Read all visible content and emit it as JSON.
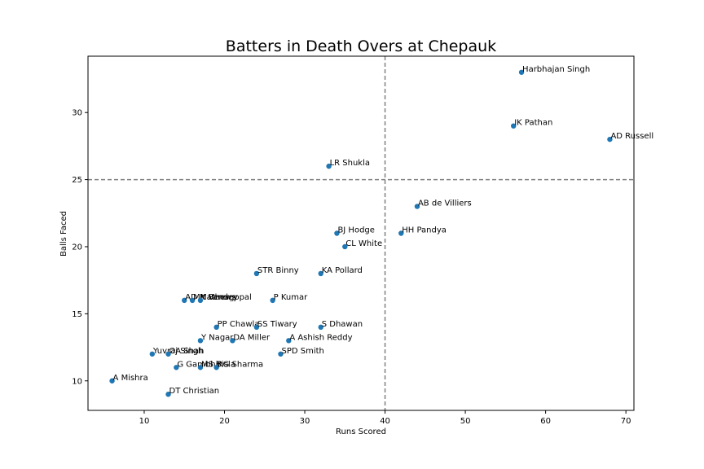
{
  "chart_data": {
    "type": "scatter",
    "title": "Batters in Death Overs at Chepauk",
    "xlabel": "Runs Scored",
    "ylabel": "Balls Faced",
    "xlim": [
      3,
      71
    ],
    "ylim": [
      7.8,
      34.2
    ],
    "xticks": [
      10,
      20,
      30,
      40,
      50,
      60,
      70
    ],
    "yticks": [
      10,
      15,
      20,
      25,
      30
    ],
    "grid": false,
    "marker_color": "#1f77b4",
    "reference_lines": {
      "vertical_x": 40,
      "horizontal_y": 25,
      "color": "#808080",
      "style": "dashed"
    },
    "points": [
      {
        "label": "Harbhajan Singh",
        "x": 57,
        "y": 33
      },
      {
        "label": "IK Pathan",
        "x": 56,
        "y": 29
      },
      {
        "label": "AD Russell",
        "x": 68,
        "y": 28
      },
      {
        "label": "LR Shukla",
        "x": 33,
        "y": 26
      },
      {
        "label": "AB de Villiers",
        "x": 44,
        "y": 23
      },
      {
        "label": "BJ Hodge",
        "x": 34,
        "y": 21
      },
      {
        "label": "HH Pandya",
        "x": 42,
        "y": 21
      },
      {
        "label": "CL White",
        "x": 35,
        "y": 20
      },
      {
        "label": "STR Binny",
        "x": 24,
        "y": 18
      },
      {
        "label": "KA Pollard",
        "x": 32,
        "y": 18
      },
      {
        "label": "AD Mathews",
        "x": 15,
        "y": 16
      },
      {
        "label": "MK Pandey",
        "x": 16,
        "y": 16
      },
      {
        "label": "Y Venugopal",
        "x": 17,
        "y": 16
      },
      {
        "label": "P Kumar",
        "x": 26,
        "y": 16
      },
      {
        "label": "PP Chawla",
        "x": 19,
        "y": 14
      },
      {
        "label": "SS Tiwary",
        "x": 24,
        "y": 14
      },
      {
        "label": "S Dhawan",
        "x": 32,
        "y": 14
      },
      {
        "label": "Y Nagar",
        "x": 17,
        "y": 13
      },
      {
        "label": "DA Miller",
        "x": 21,
        "y": 13
      },
      {
        "label": "A Ashish Reddy",
        "x": 28,
        "y": 13
      },
      {
        "label": "Yuvraj Singh",
        "x": 11,
        "y": 12
      },
      {
        "label": "OA Shah",
        "x": 13,
        "y": 12
      },
      {
        "label": "SPD Smith",
        "x": 27,
        "y": 12
      },
      {
        "label": "G Gambhir",
        "x": 14,
        "y": 11
      },
      {
        "label": "MS Bisla",
        "x": 17,
        "y": 11
      },
      {
        "label": "RG Sharma",
        "x": 19,
        "y": 11
      },
      {
        "label": "A Mishra",
        "x": 6,
        "y": 10
      },
      {
        "label": "DT Christian",
        "x": 13,
        "y": 9
      }
    ]
  }
}
